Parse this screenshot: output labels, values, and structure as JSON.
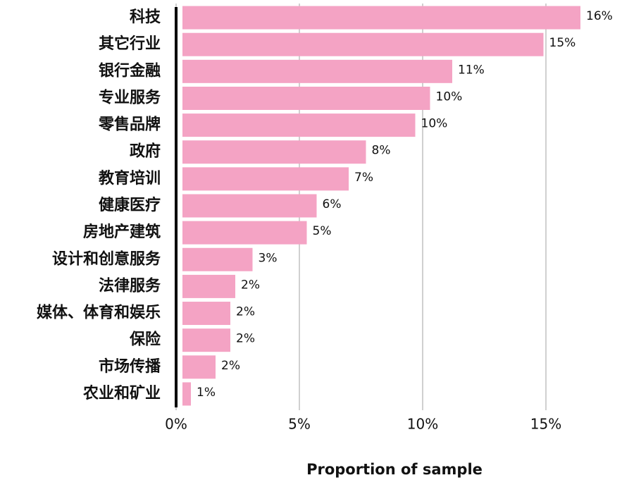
{
  "chart_data": {
    "type": "bar",
    "orientation": "horizontal",
    "categories": [
      "科技",
      "其它行业",
      "银行金融",
      "专业服务",
      "零售品牌",
      "政府",
      "教育培训",
      "健康医疗",
      "房地产建筑",
      "设计和创意服务",
      "法律服务",
      "媒体、体育和娱乐",
      "保险",
      "市场传播",
      "农业和矿业"
    ],
    "values": [
      16.4,
      14.9,
      11.2,
      10.3,
      9.7,
      7.7,
      7.0,
      5.7,
      5.3,
      3.1,
      2.4,
      2.2,
      2.2,
      1.6,
      0.6
    ],
    "value_labels": [
      "16%",
      "15%",
      "11%",
      "10%",
      "10%",
      "8%",
      "7%",
      "6%",
      "5%",
      "3%",
      "2%",
      "2%",
      "2%",
      "2%",
      "1%"
    ],
    "color": "#f4a3c4",
    "xlabel": "Proportion of sample",
    "xlim": [
      0,
      18
    ],
    "xticks": [
      {
        "value": 0,
        "label": "0%"
      },
      {
        "value": 5,
        "label": "5%"
      },
      {
        "value": 10,
        "label": "10%"
      },
      {
        "value": 15,
        "label": "15%"
      }
    ],
    "grid": true
  }
}
